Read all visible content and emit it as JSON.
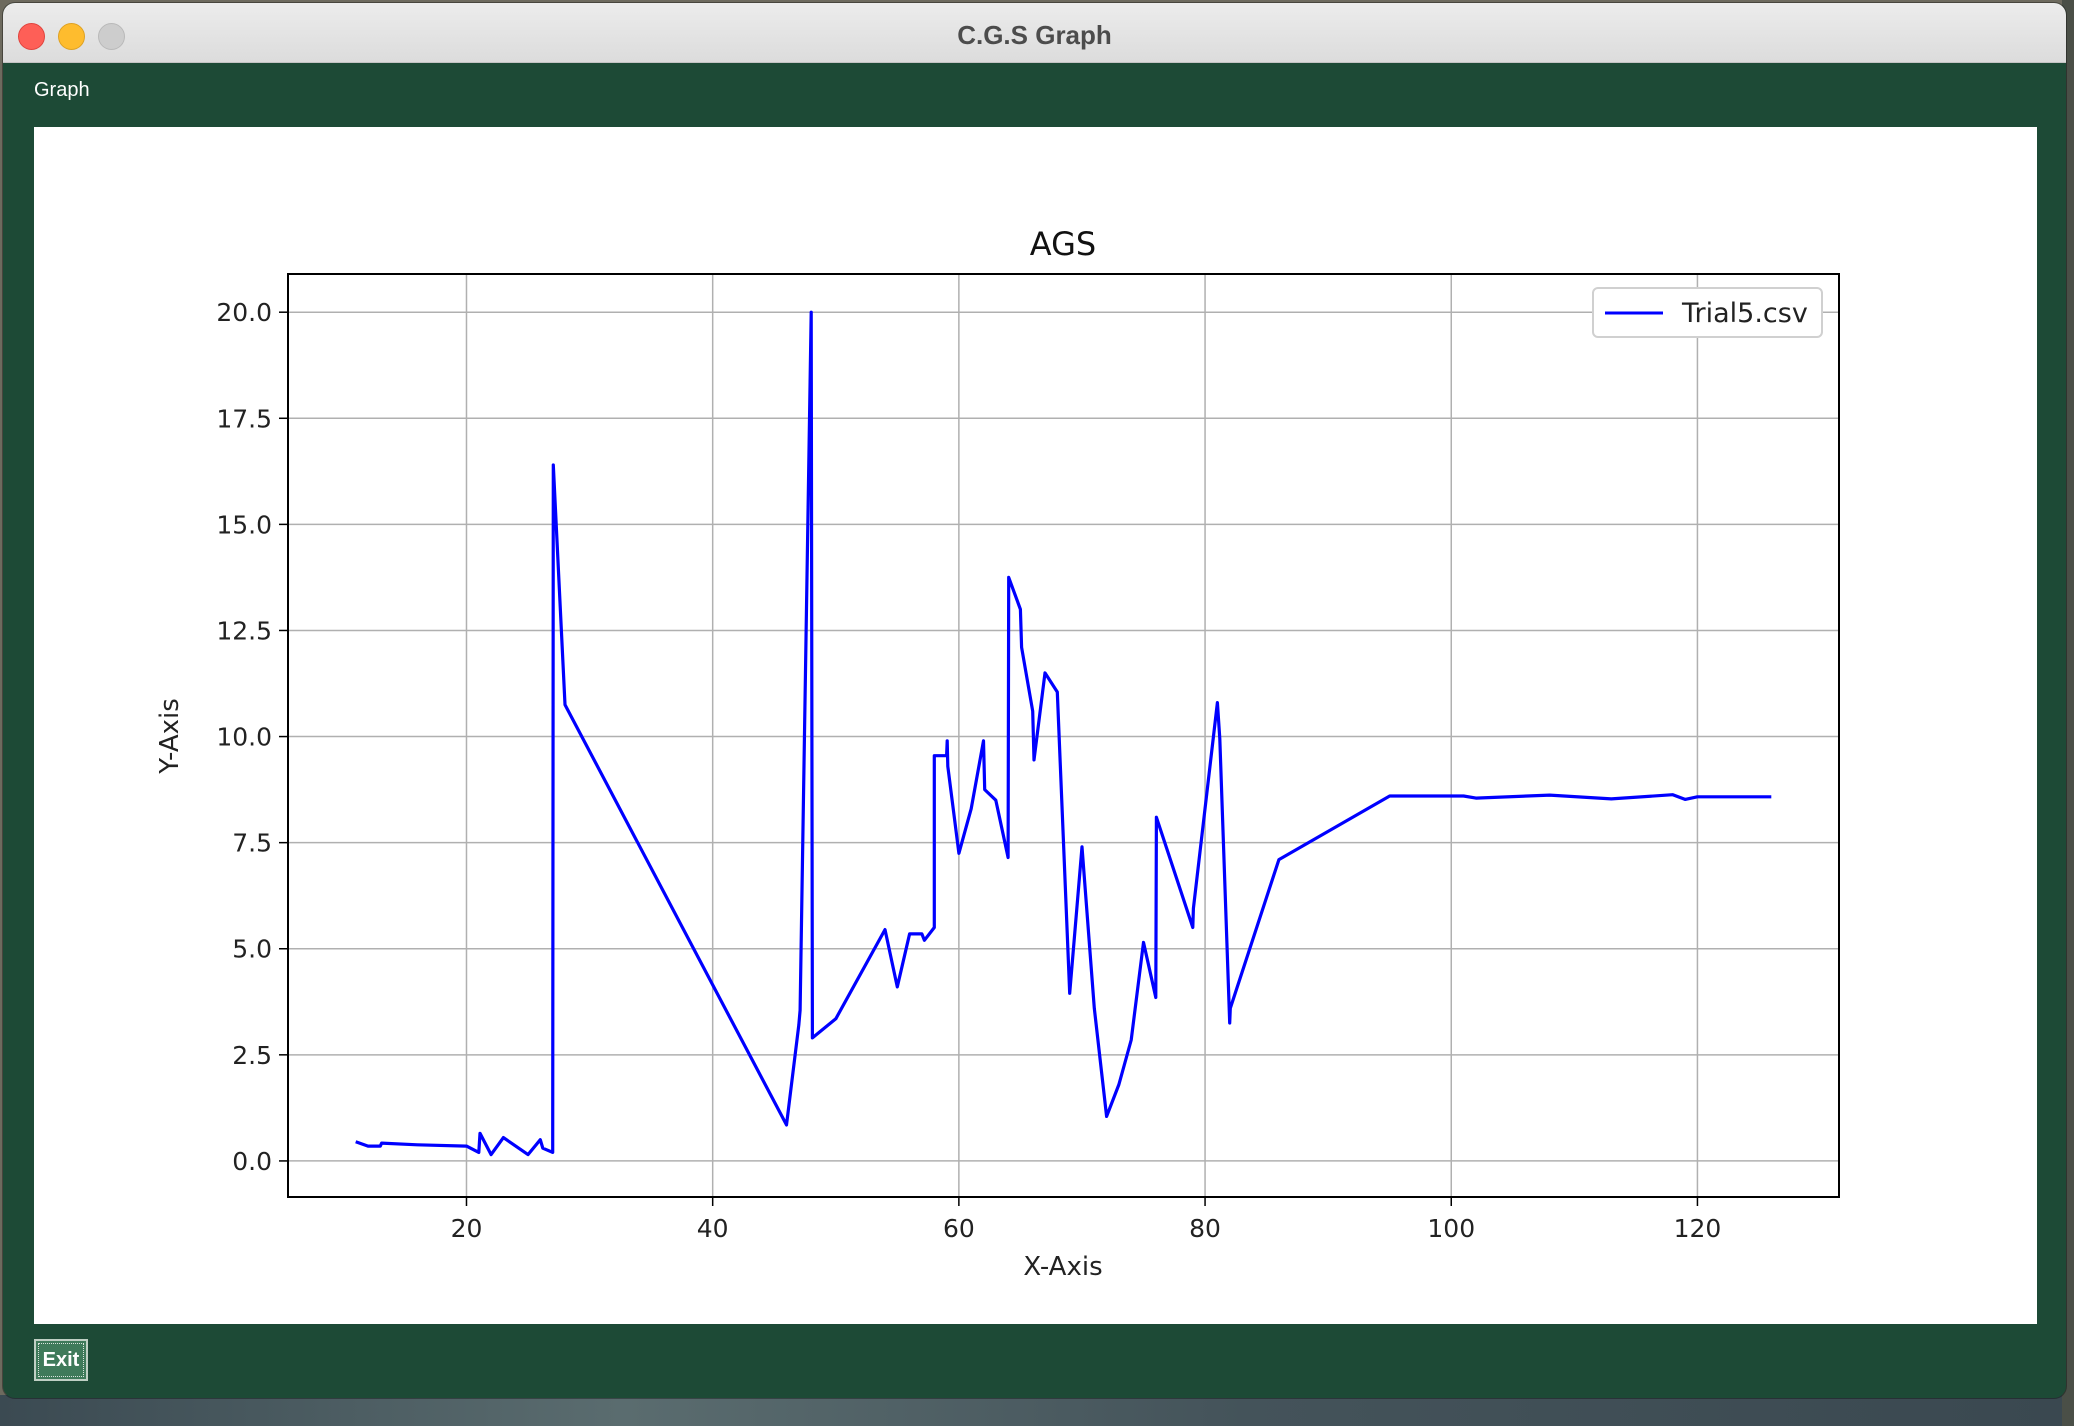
{
  "window": {
    "title": "C.G.S Graph"
  },
  "menu": {
    "graph_label": "Graph"
  },
  "footer": {
    "exit_label": "Exit"
  },
  "colors": {
    "window_bg": "#1d4a36",
    "line": "#0000ff",
    "grid": "#b0b0b0"
  },
  "chart_data": {
    "type": "line",
    "title": "AGS",
    "xlabel": "X-Axis",
    "ylabel": "Y-Axis",
    "xlim": [
      5.5,
      131.5
    ],
    "ylim": [
      -0.85,
      20.9
    ],
    "xticks": [
      20,
      40,
      60,
      80,
      100,
      120
    ],
    "yticks": [
      0.0,
      2.5,
      5.0,
      7.5,
      10.0,
      12.5,
      15.0,
      17.5,
      20.0
    ],
    "xtick_labels": [
      "20",
      "40",
      "60",
      "80",
      "100",
      "120"
    ],
    "ytick_labels": [
      "0.0",
      "2.5",
      "5.0",
      "7.5",
      "10.0",
      "12.5",
      "15.0",
      "17.5",
      "20.0"
    ],
    "grid": true,
    "legend_position": "upper right",
    "series": [
      {
        "name": "Trial5.csv",
        "color": "#0000ff",
        "x": [
          11,
          12,
          13,
          13.1,
          16,
          20,
          21,
          21.1,
          22,
          23,
          25,
          26,
          26.2,
          27,
          27.05,
          28,
          46,
          47,
          47.1,
          48,
          48.1,
          50,
          54,
          55,
          56,
          57,
          57.2,
          58,
          58,
          59,
          59.05,
          59.1,
          60,
          61,
          62,
          62.1,
          63,
          64,
          64.05,
          65,
          65.1,
          66,
          66.1,
          67,
          68,
          69,
          70,
          71,
          72,
          73,
          74,
          75,
          76,
          76.05,
          79,
          79.05,
          81,
          81.2,
          82,
          82.05,
          86,
          95,
          101,
          102,
          108,
          113,
          118,
          119,
          120,
          126
        ],
        "y": [
          0.45,
          0.35,
          0.35,
          0.42,
          0.38,
          0.35,
          0.2,
          0.65,
          0.15,
          0.55,
          0.15,
          0.5,
          0.3,
          0.2,
          16.4,
          10.75,
          0.85,
          3.2,
          3.55,
          20.0,
          2.9,
          3.35,
          5.45,
          4.1,
          5.35,
          5.35,
          5.2,
          5.5,
          9.55,
          9.55,
          9.9,
          9.3,
          7.25,
          8.3,
          9.9,
          8.75,
          8.5,
          7.15,
          13.75,
          13.0,
          12.1,
          10.6,
          9.45,
          11.5,
          11.05,
          3.95,
          7.4,
          3.6,
          1.05,
          1.8,
          2.85,
          5.15,
          3.85,
          8.1,
          5.5,
          5.95,
          10.8,
          9.95,
          3.25,
          3.6,
          7.1,
          8.6,
          8.6,
          8.55,
          8.62,
          8.53,
          8.63,
          8.52,
          8.58,
          8.58
        ]
      }
    ]
  }
}
